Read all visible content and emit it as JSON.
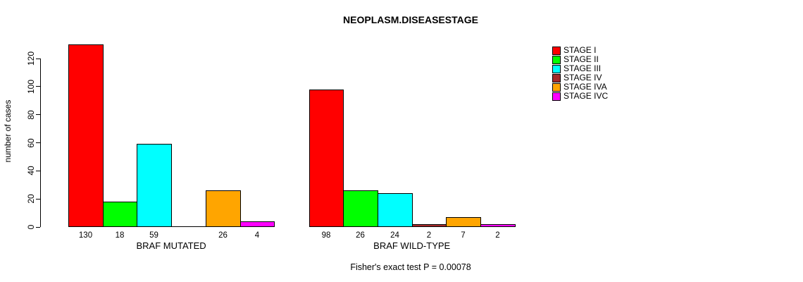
{
  "title": "NEOPLASM.DISEASESTAGE",
  "footer": "Fisher's exact test P = 0.00078",
  "chart_data": {
    "type": "bar",
    "title": "NEOPLASM.DISEASESTAGE",
    "xlabel": "",
    "ylabel": "number of cases",
    "ylim": [
      0,
      130
    ],
    "yticks": [
      0,
      20,
      40,
      60,
      80,
      100,
      120
    ],
    "grid": false,
    "legend_position": "right-outside",
    "categories": [
      "BRAF MUTATED",
      "BRAF WILD-TYPE"
    ],
    "series": [
      {
        "name": "STAGE I",
        "color": "#ff0000",
        "values": [
          130,
          98
        ]
      },
      {
        "name": "STAGE II",
        "color": "#00ff00",
        "values": [
          18,
          26
        ]
      },
      {
        "name": "STAGE III",
        "color": "#00ffff",
        "values": [
          59,
          24
        ]
      },
      {
        "name": "STAGE IV",
        "color": "#a52a2a",
        "values": [
          0,
          2
        ]
      },
      {
        "name": "STAGE IVA",
        "color": "#ffa500",
        "values": [
          26,
          7
        ]
      },
      {
        "name": "STAGE IVC",
        "color": "#ff00ff",
        "values": [
          4,
          2
        ]
      }
    ],
    "bar_value_labels": [
      [
        "130",
        "18",
        "59",
        "",
        "26",
        "4"
      ],
      [
        "98",
        "26",
        "24",
        "2",
        "7",
        "2"
      ]
    ],
    "annotation": "Fisher's exact test P = 0.00078"
  }
}
